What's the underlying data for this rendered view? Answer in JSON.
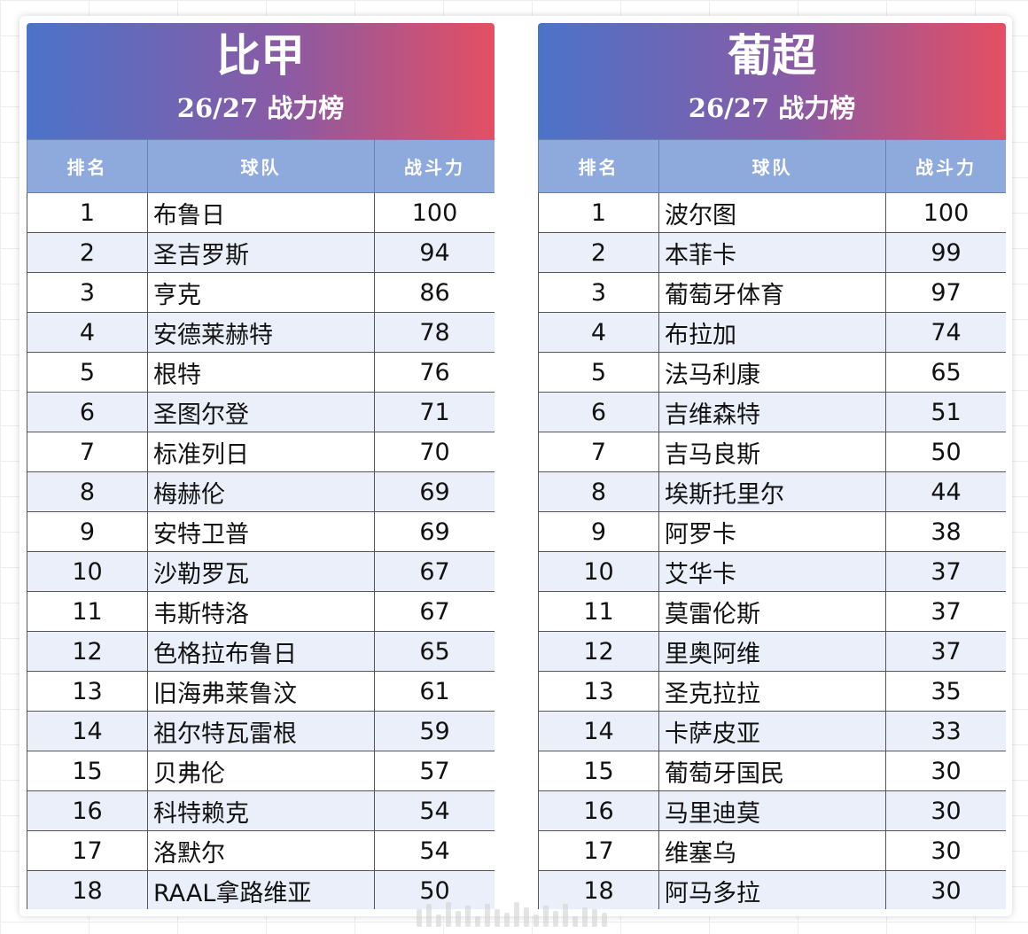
{
  "leagues": [
    {
      "title": "比甲",
      "subtitle": "26/27 战力榜",
      "columns": [
        "排名",
        "球队",
        "战斗力"
      ],
      "rows": [
        {
          "rank": "1",
          "team": "布鲁日",
          "power": "100"
        },
        {
          "rank": "2",
          "team": "圣吉罗斯",
          "power": "94"
        },
        {
          "rank": "3",
          "team": "亨克",
          "power": "86"
        },
        {
          "rank": "4",
          "team": "安德莱赫特",
          "power": "78"
        },
        {
          "rank": "5",
          "team": "根特",
          "power": "76"
        },
        {
          "rank": "6",
          "team": "圣图尔登",
          "power": "71"
        },
        {
          "rank": "7",
          "team": "标准列日",
          "power": "70"
        },
        {
          "rank": "8",
          "team": "梅赫伦",
          "power": "69"
        },
        {
          "rank": "9",
          "team": "安特卫普",
          "power": "69"
        },
        {
          "rank": "10",
          "team": "沙勒罗瓦",
          "power": "67"
        },
        {
          "rank": "11",
          "team": "韦斯特洛",
          "power": "67"
        },
        {
          "rank": "12",
          "team": "色格拉布鲁日",
          "power": "65"
        },
        {
          "rank": "13",
          "team": "旧海弗莱鲁汶",
          "power": "61"
        },
        {
          "rank": "14",
          "team": "祖尔特瓦雷根",
          "power": "59"
        },
        {
          "rank": "15",
          "team": "贝弗伦",
          "power": "57"
        },
        {
          "rank": "16",
          "team": "科特赖克",
          "power": "54"
        },
        {
          "rank": "17",
          "team": "洛默尔",
          "power": "54"
        },
        {
          "rank": "18",
          "team": "RAAL拿路维亚",
          "power": "50"
        }
      ]
    },
    {
      "title": "葡超",
      "subtitle": "26/27 战力榜",
      "columns": [
        "排名",
        "球队",
        "战斗力"
      ],
      "rows": [
        {
          "rank": "1",
          "team": "波尔图",
          "power": "100"
        },
        {
          "rank": "2",
          "team": "本菲卡",
          "power": "99"
        },
        {
          "rank": "3",
          "team": "葡萄牙体育",
          "power": "97"
        },
        {
          "rank": "4",
          "team": "布拉加",
          "power": "74"
        },
        {
          "rank": "5",
          "team": "法马利康",
          "power": "65"
        },
        {
          "rank": "6",
          "team": "吉维森特",
          "power": "51"
        },
        {
          "rank": "7",
          "team": "吉马良斯",
          "power": "50"
        },
        {
          "rank": "8",
          "team": "埃斯托里尔",
          "power": "44"
        },
        {
          "rank": "9",
          "team": "阿罗卡",
          "power": "38"
        },
        {
          "rank": "10",
          "team": "艾华卡",
          "power": "37"
        },
        {
          "rank": "11",
          "team": "莫雷伦斯",
          "power": "37"
        },
        {
          "rank": "12",
          "team": "里奥阿维",
          "power": "37"
        },
        {
          "rank": "13",
          "team": "圣克拉拉",
          "power": "35"
        },
        {
          "rank": "14",
          "team": "卡萨皮亚",
          "power": "33"
        },
        {
          "rank": "15",
          "team": "葡萄牙国民",
          "power": "30"
        },
        {
          "rank": "16",
          "team": "马里迪莫",
          "power": "30"
        },
        {
          "rank": "17",
          "team": "维塞乌",
          "power": "30"
        },
        {
          "rank": "18",
          "team": "阿马多拉",
          "power": "30"
        }
      ]
    }
  ],
  "colors": {
    "header_gradient_start": "#4b73c9",
    "header_gradient_mid": "#8a5aa4",
    "header_gradient_end": "#e44f63",
    "column_header_bg": "#8eaadc",
    "row_alt_bg": "#eaeff9"
  }
}
